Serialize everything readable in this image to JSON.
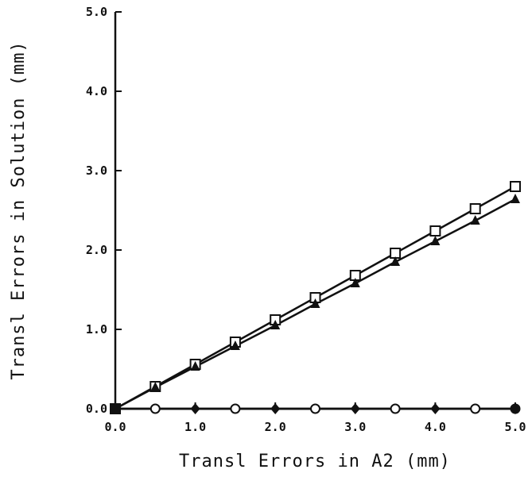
{
  "chart_data": {
    "type": "line",
    "xlabel": "Transl Errors in A2 (mm)",
    "ylabel": "Transl Errors in Solution (mm)",
    "xlim": [
      0,
      5
    ],
    "ylim": [
      0,
      5
    ],
    "x_ticks": [
      "0.0",
      "1.0",
      "2.0",
      "3.0",
      "4.0",
      "5.0"
    ],
    "y_ticks": [
      "0.0",
      "1.0",
      "2.0",
      "3.0",
      "4.0",
      "5.0"
    ],
    "grid": false,
    "x": [
      0.0,
      0.5,
      1.0,
      1.5,
      2.0,
      2.5,
      3.0,
      3.5,
      4.0,
      4.5,
      5.0
    ],
    "series": [
      {
        "marker": "square",
        "values": [
          0.0,
          0.28,
          0.56,
          0.84,
          1.12,
          1.4,
          1.68,
          1.96,
          2.24,
          2.52,
          2.8
        ]
      },
      {
        "marker": "triangle",
        "values": [
          0.0,
          0.27,
          0.53,
          0.79,
          1.05,
          1.32,
          1.58,
          1.85,
          2.11,
          2.37,
          2.64
        ]
      },
      {
        "marker": "circle",
        "values": [
          0.0,
          0.0,
          0.0,
          0.0,
          0.0,
          0.0,
          0.0,
          0.0,
          0.0,
          0.0,
          0.0
        ]
      },
      {
        "marker": "diamond",
        "values": [
          0.0,
          0.0,
          0.0,
          0.0,
          0.0,
          0.0,
          0.0,
          0.0,
          0.0,
          0.0,
          0.0
        ]
      }
    ]
  }
}
